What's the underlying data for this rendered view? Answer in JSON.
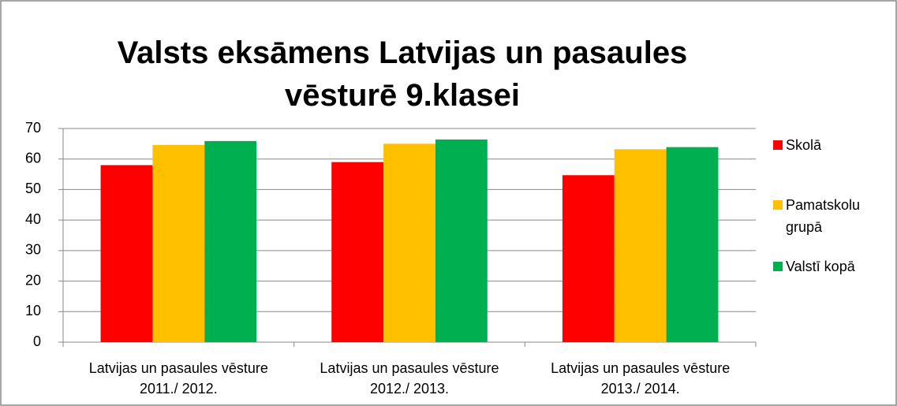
{
  "chart_data": {
    "type": "bar",
    "title": "Valsts eksāmens Latvijas un pasaules vēsturē 9.klasei",
    "categories": [
      "Latvijas un pasaules vēsture 2011./ 2012.",
      "Latvijas un pasaules vēsture 2012./ 2013.",
      "Latvijas un pasaules vēsture 2013./ 2014."
    ],
    "series": [
      {
        "name": "Skolā",
        "color": "#ff0000",
        "values": [
          58,
          59,
          54.7
        ]
      },
      {
        "name": "Pamatskolu grupā",
        "color": "#ffc000",
        "values": [
          64.6,
          65,
          63.2
        ]
      },
      {
        "name": "Valstī kopā",
        "color": "#00b050",
        "values": [
          65.9,
          66.4,
          63.9
        ]
      }
    ],
    "ylim": [
      0,
      70
    ],
    "yticks": [
      0,
      10,
      20,
      30,
      40,
      50,
      60,
      70
    ],
    "grid": true,
    "legend": "right"
  }
}
